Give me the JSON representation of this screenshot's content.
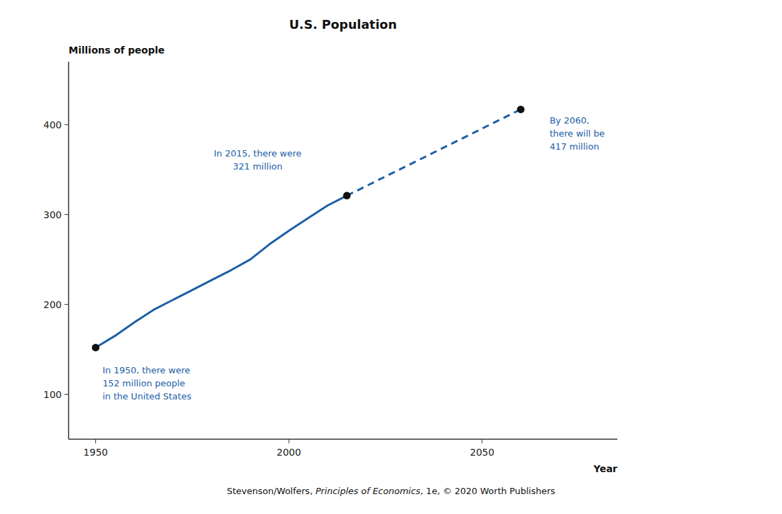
{
  "chart_data": {
    "type": "line",
    "title": "U.S. Population",
    "x_label": "Year",
    "y_label": "Millions of people",
    "series": [
      {
        "type": "line",
        "line_style": "solid",
        "color": "#1B5EA6",
        "x": [
          1950,
          1955,
          1960,
          1965,
          1970,
          1975,
          1980,
          1985,
          1990,
          1995,
          2000,
          2005,
          2010,
          2015
        ],
        "values": [
          152,
          165,
          180,
          194,
          205,
          216,
          227,
          238,
          250,
          267,
          282,
          296,
          310,
          321
        ]
      },
      {
        "type": "line",
        "line_style": "dashed",
        "color": "#1B5EA6",
        "x": [
          2015,
          2060
        ],
        "values": [
          321,
          417
        ]
      },
      {
        "type": "scatter",
        "marker": "circle",
        "color": "#111111",
        "x": [
          1950,
          2015,
          2060
        ],
        "values": [
          152,
          321,
          417
        ]
      }
    ],
    "annotations": [
      "In 1950, there were\n152 million people\nin the United States",
      "In 2015, there were\n321 million",
      "By 2060,\nthere will be\n417 million"
    ],
    "footnote": [
      "Stevenson/Wolfers, ",
      "Principles of Economics",
      ", 1e, © 2020 Worth Publishers"
    ],
    "xlim": [
      1943,
      2085
    ],
    "ylim": [
      50,
      470
    ],
    "xticks": [
      1950,
      2000,
      2050
    ],
    "yticks": [
      100,
      200,
      300,
      400
    ],
    "grid": false
  }
}
